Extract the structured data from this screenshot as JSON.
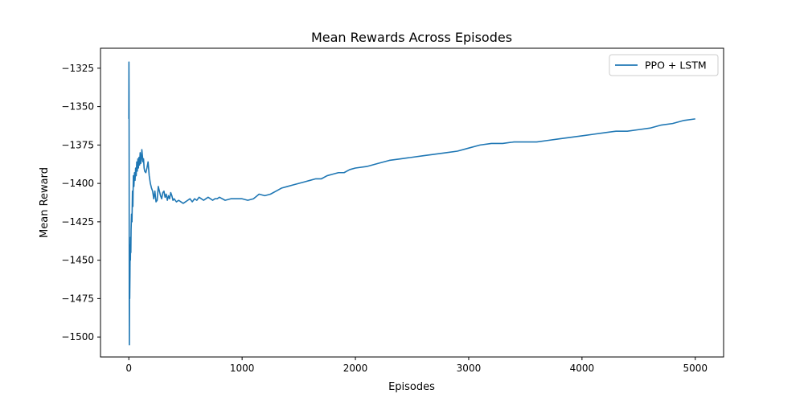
{
  "chart_data": {
    "type": "line",
    "title": "Mean Rewards Across Episodes",
    "xlabel": "Episodes",
    "ylabel": "Mean Reward",
    "xlim": [
      -250,
      5250
    ],
    "ylim": [
      -1513,
      -1312
    ],
    "xticks": [
      0,
      1000,
      2000,
      3000,
      4000,
      5000
    ],
    "yticks": [
      -1500,
      -1475,
      -1450,
      -1425,
      -1400,
      -1375,
      -1350,
      -1325
    ],
    "grid": false,
    "legend": {
      "position": "top-right"
    },
    "series": [
      {
        "name": "PPO + LSTM",
        "color": "#1f77b4",
        "x": [
          0,
          1,
          2,
          3,
          4,
          5,
          6,
          7,
          8,
          10,
          12,
          14,
          16,
          18,
          20,
          24,
          28,
          32,
          36,
          40,
          45,
          50,
          55,
          60,
          65,
          70,
          75,
          80,
          85,
          90,
          95,
          100,
          105,
          110,
          115,
          120,
          125,
          130,
          135,
          140,
          150,
          160,
          170,
          180,
          190,
          200,
          210,
          220,
          230,
          240,
          250,
          260,
          270,
          280,
          290,
          300,
          310,
          320,
          330,
          340,
          350,
          360,
          370,
          380,
          390,
          400,
          420,
          440,
          460,
          480,
          500,
          520,
          540,
          560,
          580,
          600,
          620,
          640,
          660,
          680,
          700,
          720,
          740,
          760,
          780,
          800,
          850,
          900,
          950,
          1000,
          1050,
          1100,
          1150,
          1200,
          1250,
          1300,
          1350,
          1400,
          1450,
          1500,
          1550,
          1600,
          1650,
          1700,
          1750,
          1800,
          1850,
          1900,
          1950,
          2000,
          2100,
          2200,
          2300,
          2400,
          2500,
          2600,
          2700,
          2800,
          2900,
          3000,
          3100,
          3200,
          3300,
          3400,
          3500,
          3600,
          3700,
          3800,
          3900,
          4000,
          4100,
          4200,
          4300,
          4400,
          4500,
          4600,
          4700,
          4800,
          4900,
          5000
        ],
        "y": [
          -1358,
          -1321,
          -1340,
          -1400,
          -1480,
          -1505,
          -1470,
          -1455,
          -1475,
          -1460,
          -1440,
          -1450,
          -1435,
          -1445,
          -1430,
          -1420,
          -1425,
          -1405,
          -1415,
          -1395,
          -1402,
          -1393,
          -1398,
          -1390,
          -1395,
          -1386,
          -1392,
          -1384,
          -1390,
          -1383,
          -1388,
          -1380,
          -1387,
          -1385,
          -1378,
          -1382,
          -1386,
          -1384,
          -1390,
          -1392,
          -1393,
          -1390,
          -1386,
          -1395,
          -1400,
          -1403,
          -1405,
          -1410,
          -1405,
          -1412,
          -1411,
          -1402,
          -1405,
          -1408,
          -1410,
          -1406,
          -1405,
          -1409,
          -1407,
          -1411,
          -1408,
          -1410,
          -1406,
          -1408,
          -1411,
          -1410,
          -1412,
          -1411,
          -1412,
          -1413,
          -1412,
          -1411,
          -1410,
          -1412,
          -1410,
          -1411,
          -1409,
          -1410,
          -1411,
          -1410,
          -1409,
          -1410,
          -1411,
          -1410,
          -1410,
          -1409,
          -1411,
          -1410,
          -1410,
          -1410,
          -1411,
          -1410,
          -1407,
          -1408,
          -1407,
          -1405,
          -1403,
          -1402,
          -1401,
          -1400,
          -1399,
          -1398,
          -1397,
          -1397,
          -1395,
          -1394,
          -1393,
          -1393,
          -1391,
          -1390,
          -1389,
          -1387,
          -1385,
          -1384,
          -1383,
          -1382,
          -1381,
          -1380,
          -1379,
          -1377,
          -1375,
          -1374,
          -1374,
          -1373,
          -1373,
          -1373,
          -1372,
          -1371,
          -1370,
          -1369,
          -1368,
          -1367,
          -1366,
          -1366,
          -1365,
          -1364,
          -1362,
          -1361,
          -1359,
          -1358
        ]
      }
    ]
  }
}
